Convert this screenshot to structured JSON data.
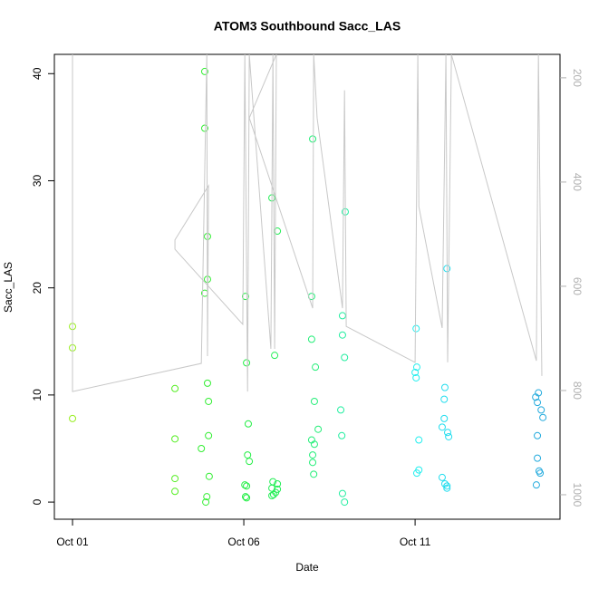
{
  "chart_data": {
    "type": "scatter",
    "title": "ATOM3 Southbound Sacc_LAS",
    "x_label": "Date",
    "y_label": "Sacc_LAS",
    "xlim": [
      0.47,
      15.23
    ],
    "ylim": [
      -1.6,
      41.8
    ],
    "y2lim": [
      1047,
      155
    ],
    "xticks": [
      {
        "value": 1,
        "label": "Oct 01"
      },
      {
        "value": 6,
        "label": "Oct 06"
      },
      {
        "value": 11,
        "label": "Oct 11"
      }
    ],
    "yticks": [
      0,
      10,
      20,
      30,
      40
    ],
    "y2ticks": [
      200,
      400,
      600,
      800,
      1000
    ],
    "series": [
      {
        "color": "#99ee22",
        "x": [
          1.0,
          1.0,
          1.0
        ],
        "values": [
          16.4,
          14.4,
          7.8
        ]
      },
      {
        "color": "#55ee22",
        "x": [
          3.99,
          3.99,
          3.99,
          3.99
        ],
        "values": [
          10.6,
          5.9,
          2.2,
          1.0
        ]
      },
      {
        "color": "#33ee33",
        "x": [
          4.86,
          4.86,
          4.94,
          4.94,
          4.86,
          4.94,
          4.97,
          4.97,
          4.76,
          4.99,
          4.92,
          4.89
        ],
        "values": [
          40.2,
          34.9,
          24.8,
          20.8,
          19.5,
          11.1,
          9.4,
          6.2,
          5.0,
          2.4,
          0.5,
          0.0
        ]
      },
      {
        "color": "#22ee44",
        "x": [
          6.05,
          6.08,
          6.13,
          6.11,
          6.16,
          6.03,
          6.08,
          6.05,
          6.08
        ],
        "values": [
          19.2,
          13.0,
          7.3,
          4.4,
          3.8,
          1.6,
          1.5,
          0.5,
          0.4
        ]
      },
      {
        "color": "#22ee55",
        "x": [
          6.82,
          6.98,
          6.9,
          6.85,
          6.98,
          6.98,
          6.82,
          6.93,
          6.87,
          6.82
        ],
        "values": [
          28.4,
          25.3,
          13.7,
          1.9,
          1.7,
          1.2,
          1.3,
          0.9,
          0.7,
          0.6
        ]
      },
      {
        "color": "#22ee77",
        "x": [
          8.01,
          7.98,
          7.98,
          8.09,
          8.06,
          8.17,
          8.06,
          7.98,
          8.01,
          8.01,
          8.04
        ],
        "values": [
          33.9,
          19.2,
          15.2,
          12.6,
          9.4,
          6.8,
          5.4,
          5.8,
          4.4,
          3.7,
          2.6
        ]
      },
      {
        "color": "#22eea0",
        "x": [
          8.96,
          8.88,
          8.88,
          8.94,
          8.83,
          8.86,
          8.88,
          8.94
        ],
        "values": [
          27.1,
          17.4,
          15.6,
          13.5,
          8.6,
          6.2,
          0.8,
          0.0
        ]
      },
      {
        "color": "#22eeee",
        "x": [
          11.03,
          11.05,
          11.0,
          11.03,
          11.11,
          11.11,
          11.05
        ],
        "values": [
          16.2,
          12.6,
          12.1,
          11.6,
          5.8,
          3.0,
          2.7
        ]
      },
      {
        "color": "#22ddee",
        "x": [
          11.93,
          11.87,
          11.85,
          11.85,
          11.95,
          11.79,
          11.98,
          11.79,
          11.87,
          11.93,
          11.93
        ],
        "values": [
          21.8,
          10.7,
          9.6,
          7.8,
          6.5,
          7.0,
          6.1,
          2.3,
          1.7,
          1.3,
          1.5
        ]
      },
      {
        "color": "#22aadd",
        "x": [
          14.6,
          14.52,
          14.57,
          14.68,
          14.73,
          14.57,
          14.57,
          14.62,
          14.65,
          14.54
        ],
        "values": [
          10.2,
          9.8,
          9.3,
          8.6,
          7.9,
          6.2,
          4.1,
          2.9,
          2.7,
          1.6
        ]
      },
      {
        "type": "line",
        "axis": "y2",
        "color": "#c8c8c8",
        "x": [
          1.0,
          1.0,
          4.76,
          4.92,
          4.94,
          4.97,
          3.99,
          3.99,
          5.97,
          6.03,
          6.11,
          6.16,
          6.79,
          6.85,
          6.9,
          6.95,
          6.16,
          8.01,
          8.04,
          8.14,
          8.88,
          8.94,
          8.99,
          11.0,
          11.08,
          11.11,
          11.79,
          11.9,
          11.95,
          12.06,
          14.54,
          14.6,
          14.7
        ],
        "values": [
          155,
          802,
          748,
          155,
          734,
          407,
          511,
          529,
          673,
          155,
          802,
          155,
          720,
          155,
          720,
          155,
          277,
          642,
          155,
          277,
          642,
          224,
          677,
          746,
          155,
          447,
          680,
          155,
          746,
          155,
          743,
          155,
          772
        ]
      }
    ]
  }
}
